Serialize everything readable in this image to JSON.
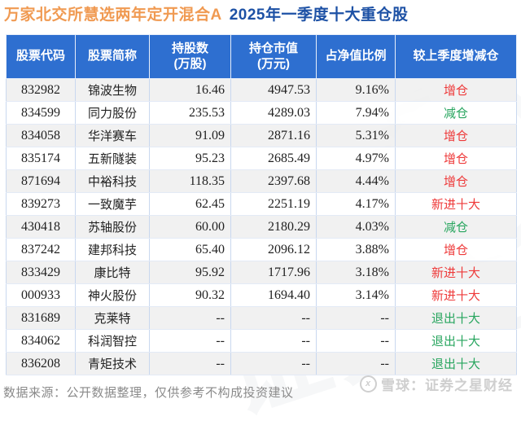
{
  "title": {
    "fund_name": "万家北交所慧选两年定开混合A",
    "period": "2025年一季度十大重仓股"
  },
  "colors": {
    "title_orange": "#f09a52",
    "title_blue": "#1d51a5",
    "header_bg": "#2e6fd0",
    "increase_red": "#ee3a3a",
    "decrease_green": "#27a55e"
  },
  "chart_data": {
    "type": "table",
    "title": "万家北交所慧选两年定开混合A 2025年一季度十大重仓股",
    "columns": [
      "股票代码",
      "股票简称",
      "持股数\n(万股)",
      "持仓市值\n(万元)",
      "占净值比例",
      "较上季度增减仓"
    ],
    "rows": [
      {
        "code": "832982",
        "name": "锦波生物",
        "shares": "16.46",
        "value": "4947.53",
        "ratio": "9.16%",
        "change": "增仓",
        "trend": "up"
      },
      {
        "code": "834599",
        "name": "同力股份",
        "shares": "235.53",
        "value": "4289.03",
        "ratio": "7.94%",
        "change": "减仓",
        "trend": "down"
      },
      {
        "code": "834058",
        "name": "华洋赛车",
        "shares": "91.09",
        "value": "2871.16",
        "ratio": "5.31%",
        "change": "增仓",
        "trend": "up"
      },
      {
        "code": "835174",
        "name": "五新隧装",
        "shares": "95.23",
        "value": "2685.49",
        "ratio": "4.97%",
        "change": "增仓",
        "trend": "up"
      },
      {
        "code": "871694",
        "name": "中裕科技",
        "shares": "118.35",
        "value": "2397.68",
        "ratio": "4.44%",
        "change": "增仓",
        "trend": "up"
      },
      {
        "code": "839273",
        "name": "一致魔芋",
        "shares": "62.45",
        "value": "2251.19",
        "ratio": "4.17%",
        "change": "新进十大",
        "trend": "up"
      },
      {
        "code": "430418",
        "name": "苏轴股份",
        "shares": "60.00",
        "value": "2180.29",
        "ratio": "4.03%",
        "change": "减仓",
        "trend": "down"
      },
      {
        "code": "837242",
        "name": "建邦科技",
        "shares": "65.40",
        "value": "2096.12",
        "ratio": "3.88%",
        "change": "增仓",
        "trend": "up"
      },
      {
        "code": "833429",
        "name": "康比特",
        "shares": "95.92",
        "value": "1717.96",
        "ratio": "3.18%",
        "change": "新进十大",
        "trend": "up"
      },
      {
        "code": "000933",
        "name": "神火股份",
        "shares": "90.32",
        "value": "1694.40",
        "ratio": "3.14%",
        "change": "新进十大",
        "trend": "up"
      },
      {
        "code": "831689",
        "name": "克莱特",
        "shares": "--",
        "value": "--",
        "ratio": "--",
        "change": "退出十大",
        "trend": "down"
      },
      {
        "code": "834062",
        "name": "科润智控",
        "shares": "--",
        "value": "--",
        "ratio": "--",
        "change": "退出十大",
        "trend": "down"
      },
      {
        "code": "836208",
        "name": "青矩技术",
        "shares": "--",
        "value": "--",
        "ratio": "--",
        "change": "退出十大",
        "trend": "down"
      }
    ]
  },
  "footer": {
    "note": "数据来源：公开数据整理，仅供参考不构成投资建议",
    "brand": "雪球：证券之星财经"
  },
  "watermark": {
    "text": "证券之星"
  }
}
